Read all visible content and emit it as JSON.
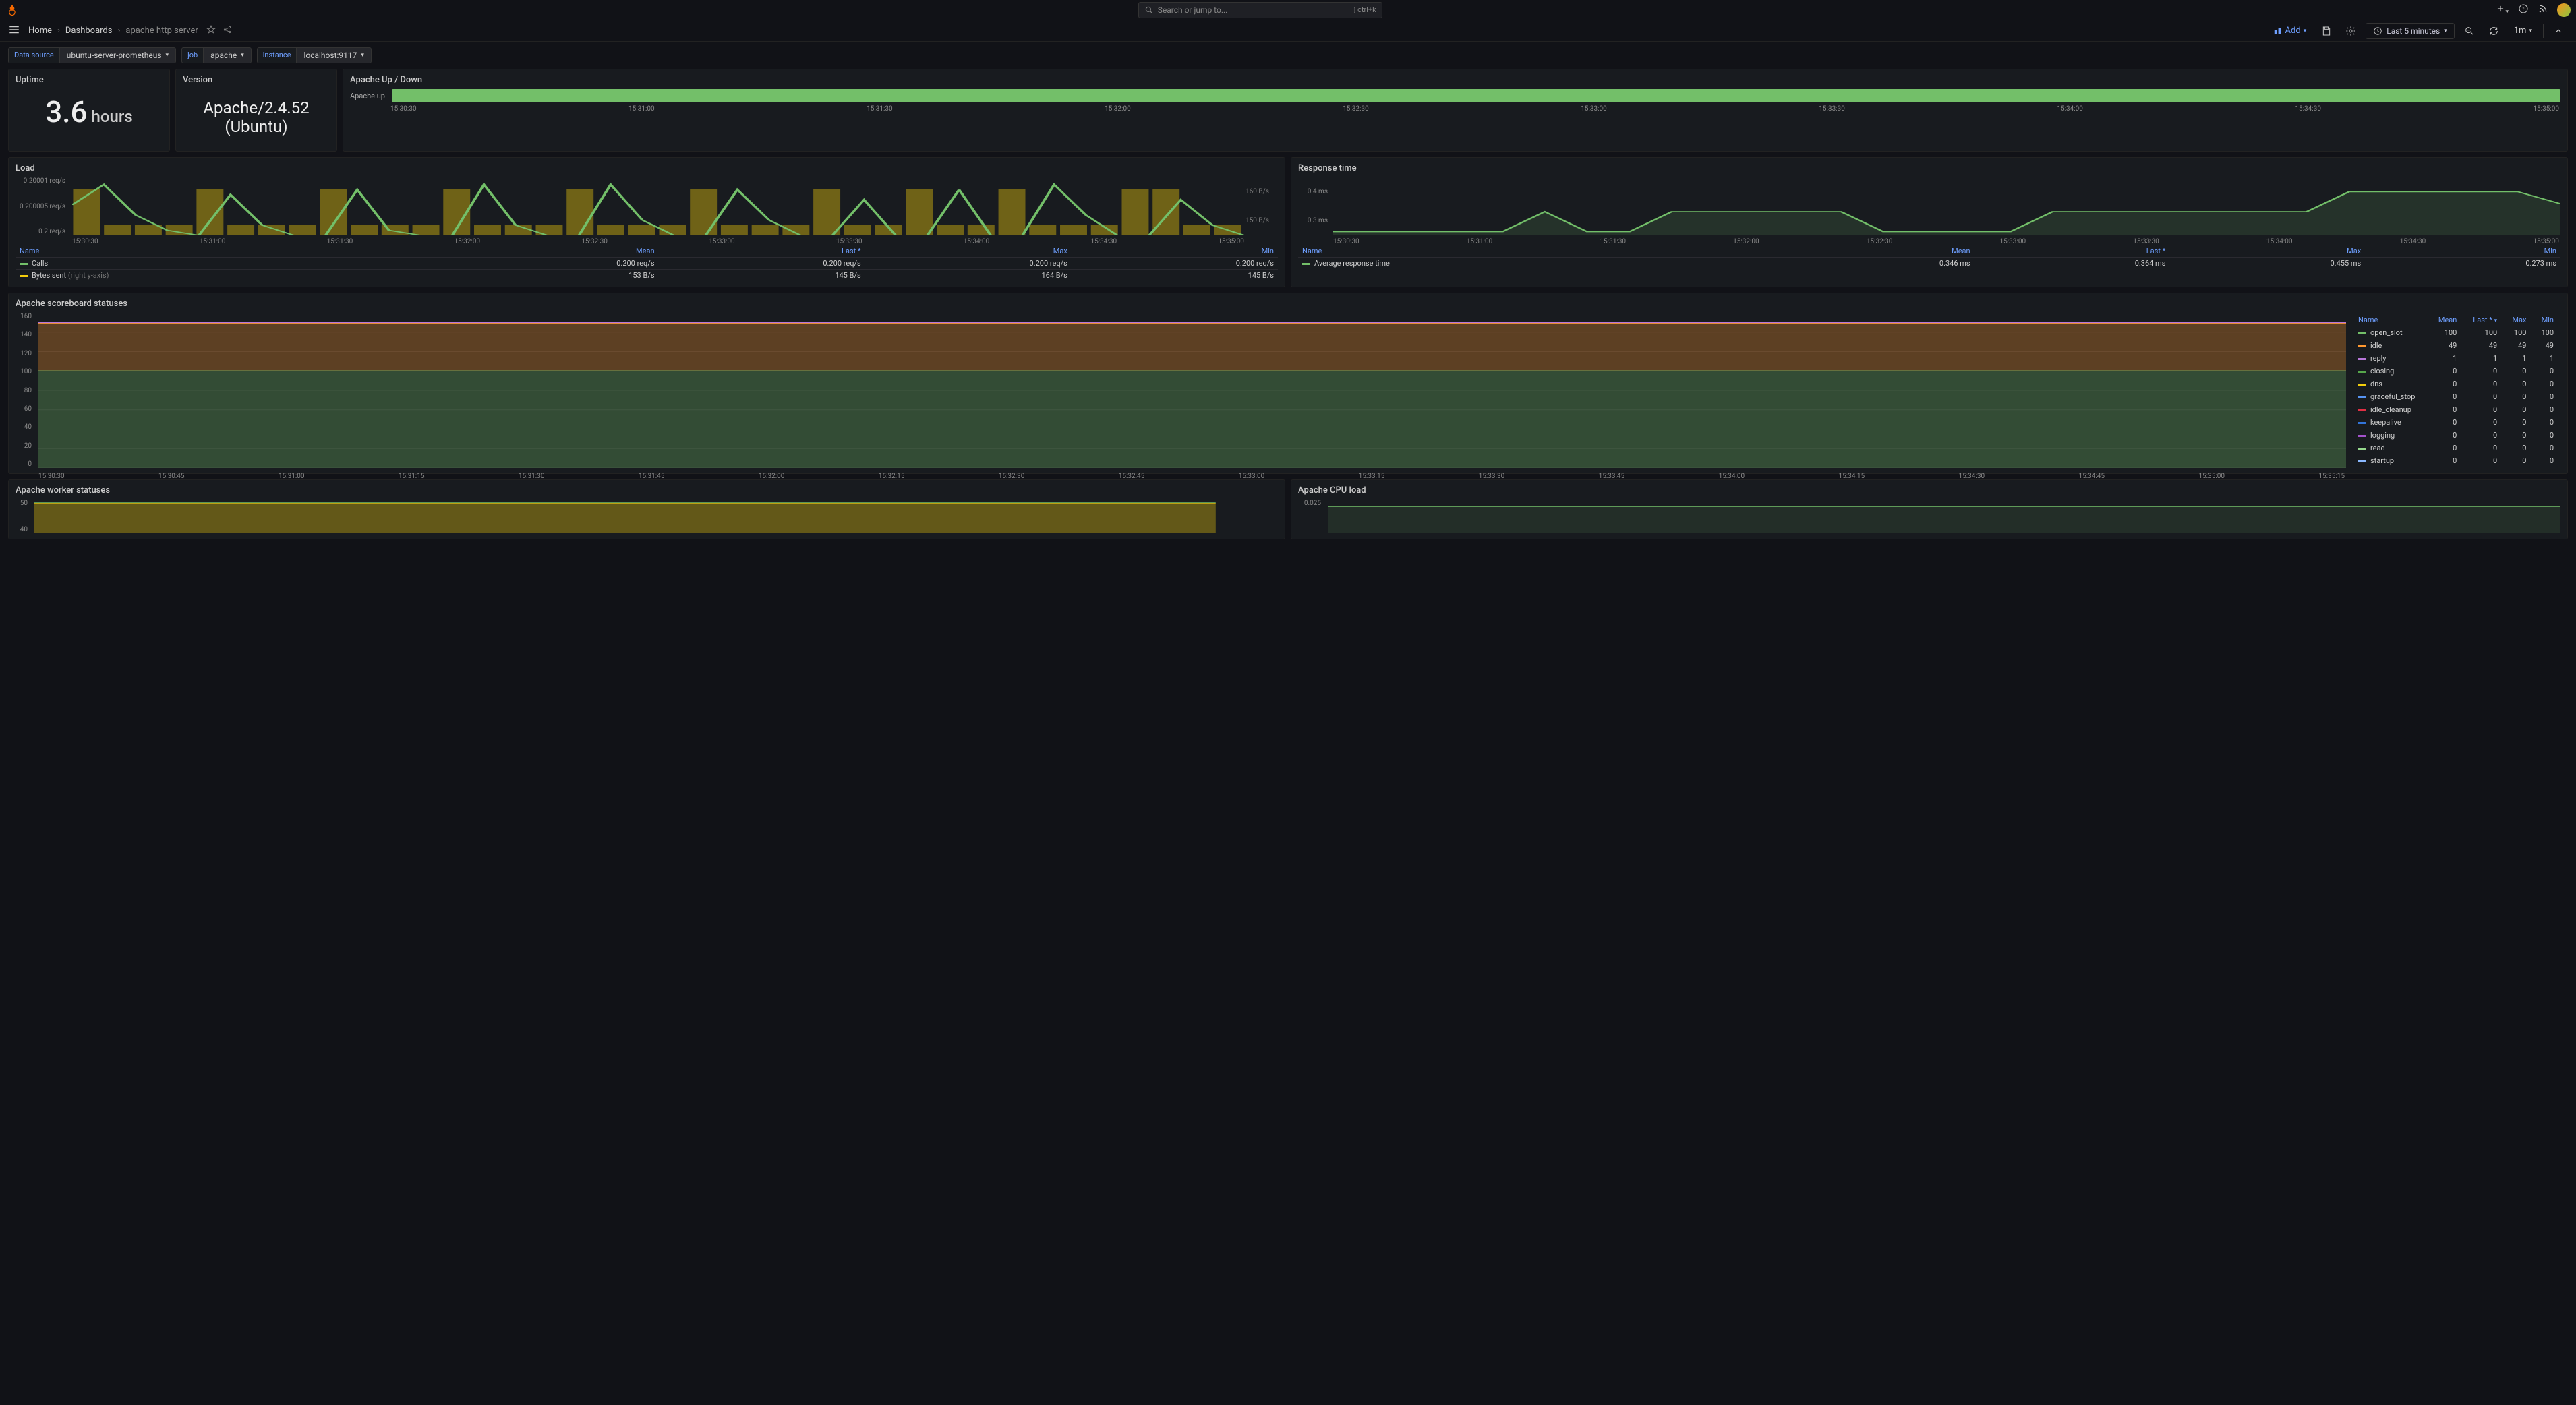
{
  "topbar": {
    "search_placeholder": "Search or jump to...",
    "search_shortcut": "ctrl+k"
  },
  "nav": {
    "home": "Home",
    "dashboards": "Dashboards",
    "current": "apache http server",
    "add_label": "Add",
    "time_range": "Last 5 minutes",
    "refresh_interval": "1m"
  },
  "filters": {
    "datasource_label": "Data source",
    "datasource_val": "ubuntu-server-prometheus",
    "job_label": "job",
    "job_val": "apache",
    "instance_label": "instance",
    "instance_val": "localhost:9117"
  },
  "panels": {
    "uptime": {
      "title": "Uptime",
      "value": "3.6",
      "unit": "hours"
    },
    "version": {
      "title": "Version",
      "value": "Apache/2.4.52 (Ubuntu)"
    },
    "updown": {
      "title": "Apache Up / Down",
      "label": "Apache up",
      "bar_color": "#73bf69",
      "x_ticks": [
        "15:30:30",
        "15:31:00",
        "15:31:30",
        "15:32:00",
        "15:32:30",
        "15:33:00",
        "15:33:30",
        "15:34:00",
        "15:34:30",
        "15:35:00"
      ]
    },
    "load": {
      "title": "Load",
      "y_left": [
        "0.20001 req/s",
        "0.200005 req/s",
        "0.2 req/s"
      ],
      "y_right": [
        "160 B/s",
        "150 B/s"
      ],
      "x_ticks": [
        "15:30:30",
        "15:31:00",
        "15:31:30",
        "15:32:00",
        "15:32:30",
        "15:33:00",
        "15:33:30",
        "15:34:00",
        "15:34:30",
        "15:35:00"
      ],
      "headers": [
        "Name",
        "Mean",
        "Last *",
        "Max",
        "Min"
      ],
      "rows": [
        {
          "color": "#73bf69",
          "name": "Calls",
          "mean": "0.200 req/s",
          "last": "0.200 req/s",
          "max": "0.200 req/s",
          "min": "0.200 req/s"
        },
        {
          "color": "#f2cc0c",
          "name": "Bytes sent",
          "suffix": "(right y-axis)",
          "mean": "153 B/s",
          "last": "145 B/s",
          "max": "164 B/s",
          "min": "145 B/s"
        }
      ],
      "calls_line_color": "#73bf69",
      "bytes_bar_color": "#f2cc0c",
      "calls_points": [
        0.6,
        1.0,
        0.4,
        0.1,
        0.0,
        0.8,
        0.2,
        0.0,
        0.0,
        0.9,
        0.1,
        0.0,
        0.0,
        1.0,
        0.2,
        0.0,
        0.0,
        1.0,
        0.3,
        0.0,
        0.0,
        0.9,
        0.3,
        0.0,
        0.0,
        0.7,
        0.0,
        0.0,
        0.9,
        0.0,
        0.0,
        1.0,
        0.4,
        0.0,
        0.0,
        0.7,
        0.2,
        0.0
      ],
      "bytes_bars": [
        0.9,
        0.2,
        0.2,
        0.2,
        0.9,
        0.2,
        0.2,
        0.2,
        0.9,
        0.2,
        0.2,
        0.2,
        0.9,
        0.2,
        0.2,
        0.2,
        0.9,
        0.2,
        0.2,
        0.2,
        0.9,
        0.2,
        0.2,
        0.2,
        0.9,
        0.2,
        0.2,
        0.9,
        0.2,
        0.2,
        0.9,
        0.2,
        0.2,
        0.2,
        0.9,
        0.9,
        0.2,
        0.2
      ]
    },
    "response": {
      "title": "Response time",
      "y_left": [
        "0.4 ms",
        "0.3 ms"
      ],
      "x_ticks": [
        "15:30:30",
        "15:31:00",
        "15:31:30",
        "15:32:00",
        "15:32:30",
        "15:33:00",
        "15:33:30",
        "15:34:00",
        "15:34:30",
        "15:35:00"
      ],
      "headers": [
        "Name",
        "Mean",
        "Last *",
        "Max",
        "Min"
      ],
      "row": {
        "color": "#73bf69",
        "name": "Average response time",
        "mean": "0.346 ms",
        "last": "0.364 ms",
        "max": "0.455 ms",
        "min": "0.273 ms"
      },
      "line_color": "#73bf69",
      "points": [
        0.0,
        0.0,
        0.0,
        0.0,
        0.0,
        0.5,
        0.0,
        0.0,
        0.5,
        0.5,
        0.5,
        0.5,
        0.5,
        0.0,
        0.0,
        0.0,
        0.0,
        0.5,
        0.5,
        0.5,
        0.5,
        0.5,
        0.5,
        0.5,
        1.0,
        1.0,
        1.0,
        1.0,
        1.0,
        0.7
      ]
    },
    "scoreboard": {
      "title": "Apache scoreboard statuses",
      "y_ticks": [
        "160",
        "140",
        "120",
        "100",
        "80",
        "60",
        "40",
        "20",
        "0"
      ],
      "x_ticks": [
        "15:30:30",
        "15:30:45",
        "15:31:00",
        "15:31:15",
        "15:31:30",
        "15:31:45",
        "15:32:00",
        "15:32:15",
        "15:32:30",
        "15:32:45",
        "15:33:00",
        "15:33:15",
        "15:33:30",
        "15:33:45",
        "15:34:00",
        "15:34:15",
        "15:34:30",
        "15:34:45",
        "15:35:00",
        "15:35:15"
      ],
      "headers": [
        "Name",
        "Mean",
        "Last *",
        "Max",
        "Min"
      ],
      "rows": [
        {
          "color": "#73bf69",
          "name": "open_slot",
          "mean": "100",
          "last": "100",
          "max": "100",
          "min": "100"
        },
        {
          "color": "#ff9830",
          "name": "idle",
          "mean": "49",
          "last": "49",
          "max": "49",
          "min": "49"
        },
        {
          "color": "#b877d9",
          "name": "reply",
          "mean": "1",
          "last": "1",
          "max": "1",
          "min": "1"
        },
        {
          "color": "#56a64b",
          "name": "closing",
          "mean": "0",
          "last": "0",
          "max": "0",
          "min": "0"
        },
        {
          "color": "#f2cc0c",
          "name": "dns",
          "mean": "0",
          "last": "0",
          "max": "0",
          "min": "0"
        },
        {
          "color": "#5794f2",
          "name": "graceful_stop",
          "mean": "0",
          "last": "0",
          "max": "0",
          "min": "0"
        },
        {
          "color": "#e02f44",
          "name": "idle_cleanup",
          "mean": "0",
          "last": "0",
          "max": "0",
          "min": "0"
        },
        {
          "color": "#3274d9",
          "name": "keepalive",
          "mean": "0",
          "last": "0",
          "max": "0",
          "min": "0"
        },
        {
          "color": "#a352cc",
          "name": "logging",
          "mean": "0",
          "last": "0",
          "max": "0",
          "min": "0"
        },
        {
          "color": "#96d98d",
          "name": "read",
          "mean": "0",
          "last": "0",
          "max": "0",
          "min": "0"
        },
        {
          "color": "#8ab8ff",
          "name": "startup",
          "mean": "0",
          "last": "0",
          "max": "0",
          "min": "0"
        }
      ],
      "stacked_layers": [
        {
          "color": "#b877d9",
          "y": 149,
          "h": 1
        },
        {
          "color": "#ff9830",
          "y": 100,
          "h": 49
        },
        {
          "color": "#73bf69",
          "y": 0,
          "h": 100
        }
      ]
    },
    "workers": {
      "title": "Apache worker statuses",
      "y_ticks": [
        "50",
        "40"
      ],
      "fill_color": "#f2cc0c",
      "line_color": "#73bf69"
    },
    "cpu": {
      "title": "Apache CPU load",
      "y_ticks": [
        "0.025"
      ],
      "line_color": "#73bf69"
    }
  },
  "colors": {
    "link": "#6e9fff",
    "bg_panel": "#181b1f"
  }
}
